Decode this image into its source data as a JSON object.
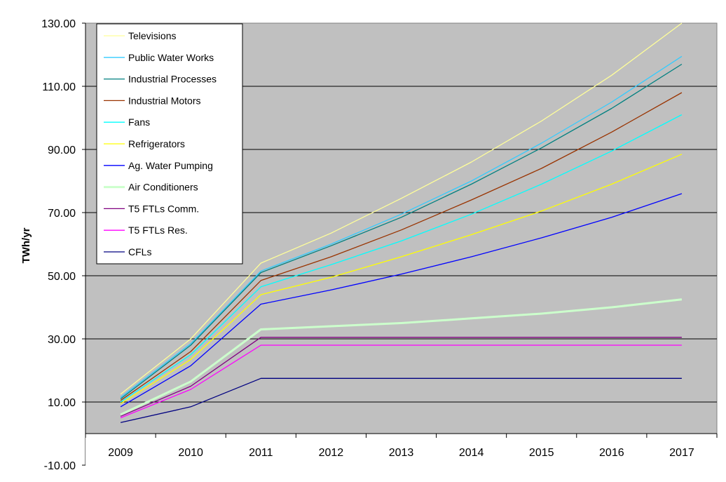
{
  "chart_data": {
    "type": "line",
    "title": "",
    "xlabel": "",
    "ylabel": "TWh/yr",
    "x": [
      "2009",
      "2010",
      "2011",
      "2012",
      "2013",
      "2014",
      "2015",
      "2016",
      "2017"
    ],
    "y_ticks": [
      "130.00",
      "110.00",
      "90.00",
      "70.00",
      "50.00",
      "30.00",
      "10.00",
      "-10.00"
    ],
    "ylim": [
      -10,
      130
    ],
    "grid": true,
    "legend_position": "top-left",
    "plot_background": "#c0c0c0",
    "series": [
      {
        "name": "Televisions",
        "color": "#ffff99",
        "values": [
          12.5,
          30,
          54,
          63.5,
          74.5,
          86,
          99,
          113.5,
          130
        ]
      },
      {
        "name": "Public Water Works",
        "color": "#33ccff",
        "values": [
          11.5,
          28.5,
          51.5,
          60,
          69.5,
          80,
          92,
          105,
          119.5
        ]
      },
      {
        "name": "Industrial Processes",
        "color": "#008080",
        "values": [
          11,
          28,
          51,
          59.5,
          68.5,
          79,
          90.5,
          103,
          117
        ]
      },
      {
        "name": "Industrial Motors",
        "color": "#993300",
        "values": [
          10.5,
          26,
          48.5,
          56,
          64.5,
          74,
          84,
          95.5,
          108
        ]
      },
      {
        "name": "Fans",
        "color": "#00ffff",
        "values": [
          10,
          25,
          46.5,
          53.5,
          61,
          69.5,
          79,
          89.5,
          101
        ]
      },
      {
        "name": "Refrigerators",
        "color": "#ffff00",
        "values": [
          9.5,
          23.5,
          44,
          49.5,
          56,
          63,
          70.5,
          79,
          88.5
        ]
      },
      {
        "name": "Ag. Water Pumping",
        "color": "#0000ff",
        "values": [
          8.5,
          21.5,
          41,
          45.5,
          50.5,
          56,
          62,
          68.5,
          76
        ]
      },
      {
        "name": "Air Conditioners",
        "color": "#ccffcc",
        "width": 3,
        "values": [
          6,
          16.5,
          33,
          34,
          35,
          36.5,
          38,
          40,
          42.5
        ]
      },
      {
        "name": "T5 FTLs Comm.",
        "color": "#800080",
        "values": [
          5.5,
          15,
          30.5,
          30.5,
          30.5,
          30.5,
          30.5,
          30.5,
          30.5
        ]
      },
      {
        "name": "T5 FTLs Res.",
        "color": "#ff00ff",
        "values": [
          5,
          14,
          28,
          28,
          28,
          28,
          28,
          28,
          28
        ]
      },
      {
        "name": "CFLs",
        "color": "#000080",
        "values": [
          3.5,
          8.5,
          17.5,
          17.5,
          17.5,
          17.5,
          17.5,
          17.5,
          17.5
        ]
      }
    ]
  }
}
